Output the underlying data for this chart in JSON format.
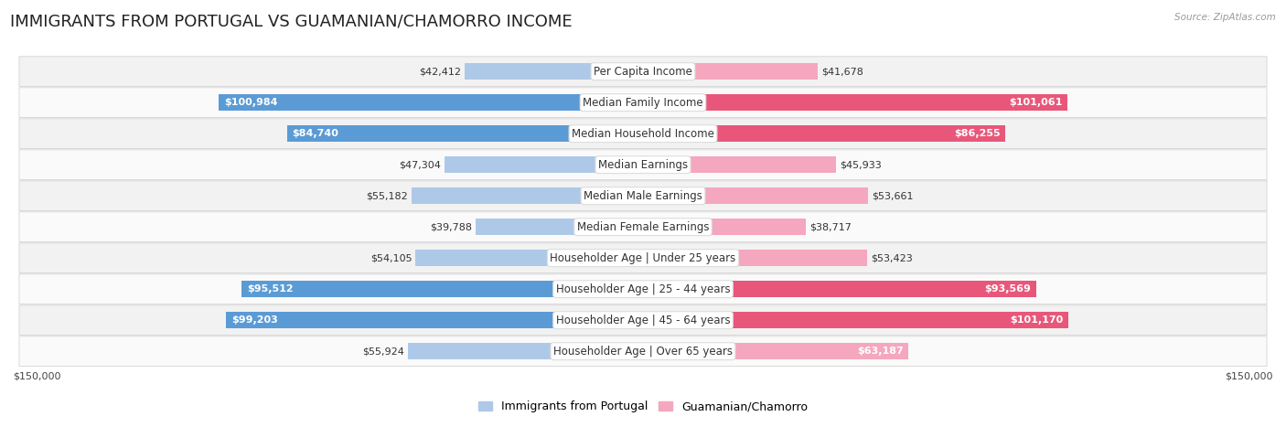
{
  "title": "IMMIGRANTS FROM PORTUGAL VS GUAMANIAN/CHAMORRO INCOME",
  "source": "Source: ZipAtlas.com",
  "categories": [
    "Per Capita Income",
    "Median Family Income",
    "Median Household Income",
    "Median Earnings",
    "Median Male Earnings",
    "Median Female Earnings",
    "Householder Age | Under 25 years",
    "Householder Age | 25 - 44 years",
    "Householder Age | 45 - 64 years",
    "Householder Age | Over 65 years"
  ],
  "portugal_values": [
    42412,
    100984,
    84740,
    47304,
    55182,
    39788,
    54105,
    95512,
    99203,
    55924
  ],
  "chamorro_values": [
    41678,
    101061,
    86255,
    45933,
    53661,
    38717,
    53423,
    93569,
    101170,
    63187
  ],
  "portugal_color_light": "#aec9e8",
  "portugal_color_dark": "#5b9bd5",
  "chamorro_color_light": "#f4a7be",
  "chamorro_color_dark": "#e8577a",
  "dark_threshold": 67000,
  "max_value": 150000,
  "portugal_label": "Immigrants from Portugal",
  "chamorro_label": "Guamanian/Chamorro",
  "xlabel_left": "$150,000",
  "xlabel_right": "$150,000",
  "background_color": "#ffffff",
  "row_bg_odd": "#f2f2f2",
  "row_bg_even": "#fafafa",
  "bar_height": 0.52,
  "title_fontsize": 13,
  "label_fontsize": 8.5,
  "value_fontsize": 8,
  "legend_fontsize": 9,
  "inside_text_threshold": 60000
}
